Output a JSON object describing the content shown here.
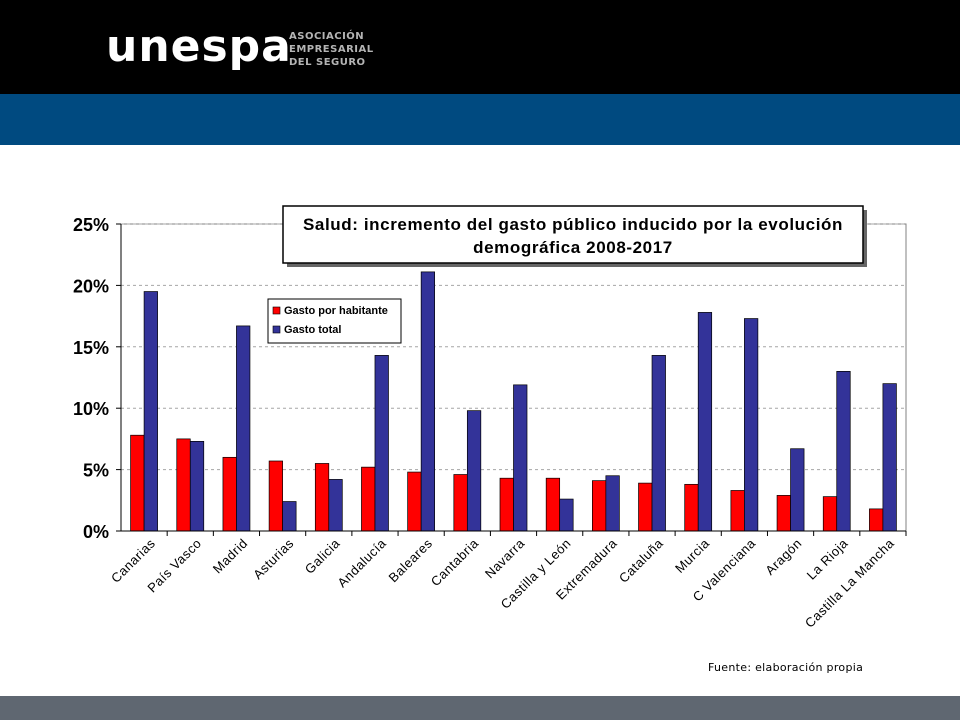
{
  "header": {
    "logo_text": "unespa",
    "logo_subtitle": [
      "ASOCIACIÓN",
      "EMPRESARIAL",
      "DEL SEGURO"
    ]
  },
  "footer": {
    "source_note": "Fuente: elaboración propia"
  },
  "chart_data": {
    "type": "bar",
    "title_lines": [
      "Salud: incremento del gasto público inducido por la evolución",
      "demográfica 2008-2017"
    ],
    "xlabel": "",
    "ylabel": "",
    "ylim": [
      0,
      25
    ],
    "yticks": [
      0,
      5,
      10,
      15,
      20,
      25
    ],
    "ytick_suffix": "%",
    "grid": true,
    "legend_position": "top-left",
    "categories": [
      "Canarias",
      "País Vasco",
      "Madrid",
      "Asturias",
      "Galicia",
      "Andalucía",
      "Baleares",
      "Cantabria",
      "Navarra",
      "Castilla y León",
      "Extremadura",
      "Cataluña",
      "Murcia",
      "C Valenciana",
      "Aragón",
      "La Rioja",
      "Castilla La Mancha"
    ],
    "series": [
      {
        "name": "Gasto por habitante",
        "color": "#ff0000",
        "values": [
          7.8,
          7.5,
          6.0,
          5.7,
          5.5,
          5.2,
          4.8,
          4.6,
          4.3,
          4.3,
          4.1,
          3.9,
          3.8,
          3.3,
          2.9,
          2.8,
          1.8
        ]
      },
      {
        "name": "Gasto total",
        "color": "#333399",
        "values": [
          19.5,
          7.3,
          16.7,
          2.4,
          4.2,
          14.3,
          21.1,
          9.8,
          11.9,
          2.6,
          4.5,
          14.3,
          17.8,
          17.3,
          6.7,
          13.0,
          12.0
        ]
      }
    ]
  }
}
